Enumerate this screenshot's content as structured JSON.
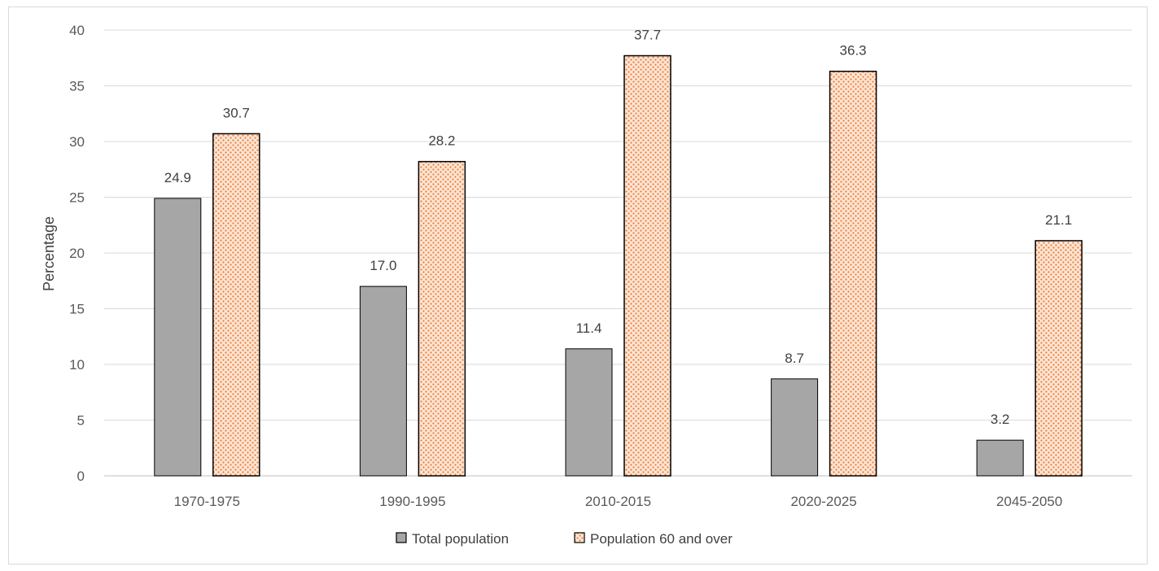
{
  "chart_data": {
    "type": "bar",
    "categories": [
      "1970-1975",
      "1990-1995",
      "2010-2015",
      "2020-2025",
      "2045-2050"
    ],
    "series": [
      {
        "name": "Total population",
        "values": [
          24.9,
          17.0,
          11.4,
          8.7,
          3.2
        ],
        "color": "#a6a6a6",
        "pattern": "solid"
      },
      {
        "name": "Population 60 and over",
        "values": [
          30.7,
          28.2,
          37.7,
          36.3,
          21.1
        ],
        "color": "#ed7d31",
        "pattern": "dotted"
      }
    ],
    "title": "",
    "xlabel": "",
    "ylabel": "Percentage",
    "ylim": [
      0,
      40
    ],
    "yticks": [
      0,
      5,
      10,
      15,
      20,
      25,
      30,
      35,
      40
    ],
    "grid": true,
    "legend": "bottom",
    "data_labels": true,
    "value_decimals": 1
  }
}
